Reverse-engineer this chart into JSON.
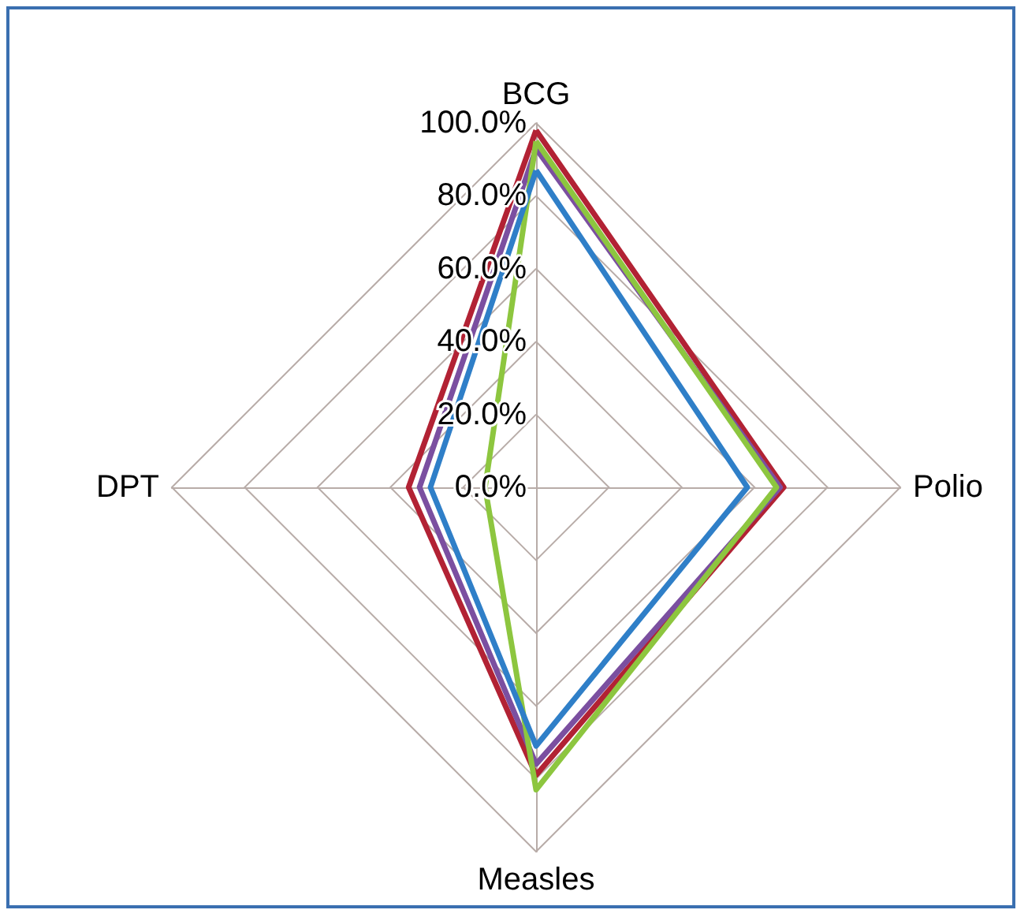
{
  "chart_data": {
    "type": "radar",
    "categories": [
      "BCG",
      "Polio",
      "Measles",
      "DPT"
    ],
    "ylim": [
      0,
      100
    ],
    "yticks": [
      {
        "value": 0,
        "label": "0.0%"
      },
      {
        "value": 20,
        "label": "20.0%"
      },
      {
        "value": 40,
        "label": "40.0%"
      },
      {
        "value": 60,
        "label": "60.0%"
      },
      {
        "value": 80,
        "label": "80.0%"
      },
      {
        "value": 100,
        "label": "100.0%"
      }
    ],
    "series": [
      {
        "color": "#b22234",
        "values": [
          98,
          68,
          79,
          35
        ]
      },
      {
        "color": "#7b4fa0",
        "values": [
          93,
          67,
          76,
          32
        ]
      },
      {
        "color": "#8dc63f",
        "values": [
          95,
          66,
          83,
          14
        ]
      },
      {
        "color": "#2f7fc8",
        "values": [
          87,
          58,
          71,
          29
        ]
      }
    ],
    "grid": true,
    "marker": "none",
    "line_style": "solid"
  }
}
